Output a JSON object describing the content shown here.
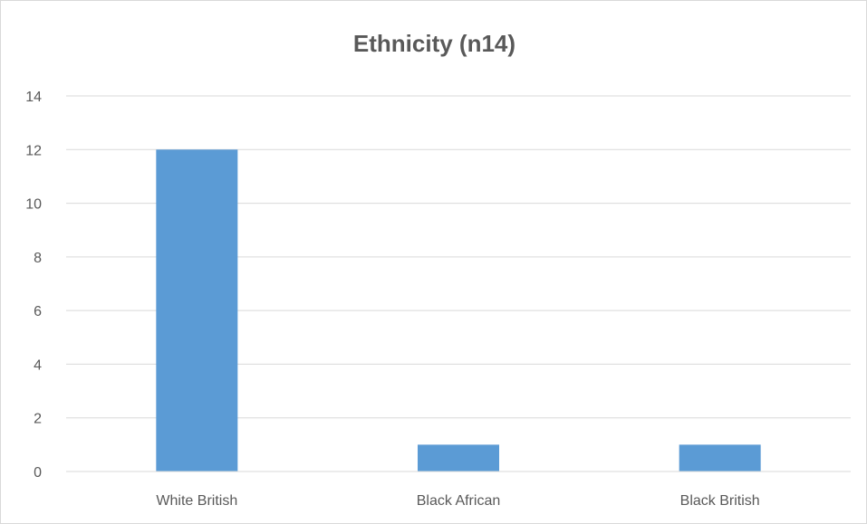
{
  "chart_data": {
    "type": "bar",
    "title": "Ethnicity (n14)",
    "categories": [
      "White British",
      "Black African",
      "Black British"
    ],
    "values": [
      12,
      1,
      1
    ],
    "ylim": [
      0,
      14
    ],
    "yticks": [
      0,
      2,
      4,
      6,
      8,
      10,
      12,
      14
    ],
    "grid": true,
    "legend": "none",
    "bar_color": "#5b9bd5",
    "grid_color": "#d9d9d9",
    "text_color": "#595959"
  }
}
